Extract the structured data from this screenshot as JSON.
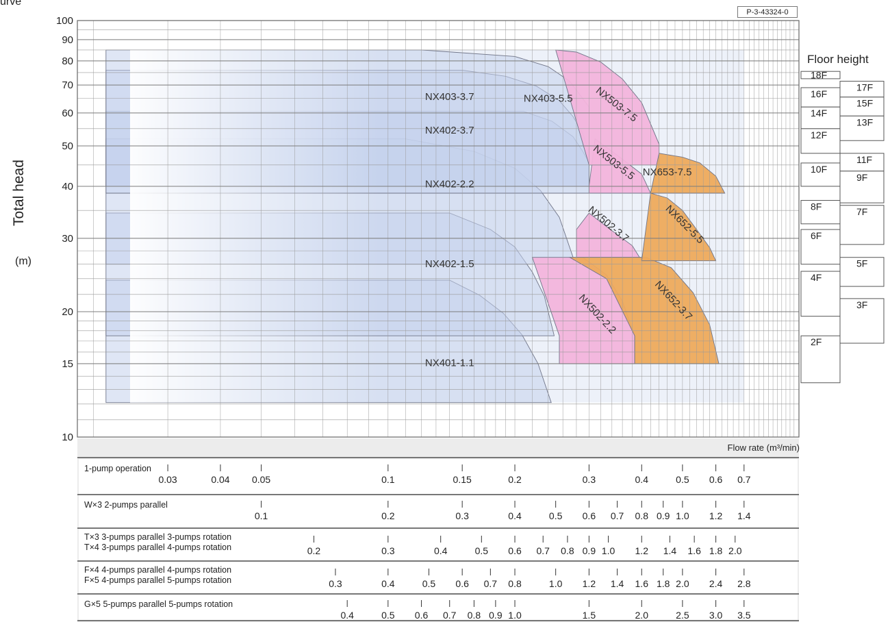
{
  "page": {
    "top_caption": "urve",
    "code": "P-3-43324-0",
    "floor_title": "Floor height",
    "flow_label": "Flow rate (m³/min)"
  },
  "chart_data": {
    "type": "area",
    "title": "",
    "ylabel": "Total head",
    "yunit": "(m)",
    "y_scale": "log",
    "ylim": [
      10,
      100
    ],
    "y_ticks": [
      10,
      15,
      20,
      30,
      40,
      50,
      60,
      70,
      80,
      90,
      100
    ],
    "x_scale": "log",
    "xlim_1pump": [
      0.0183,
      0.945
    ],
    "grid": true,
    "colors": {
      "nx40": "#c5d2ec",
      "nx50": "#f3b4dc",
      "nx65": "#eeaa5c",
      "grid": "#9a9a9a"
    },
    "series": [
      {
        "name": "NX401-1.1",
        "family": "nx40",
        "x": [
          0.0214,
          0.14,
          0.165,
          0.188,
          0.208,
          0.227,
          0.244,
          0.244,
          0.0214
        ],
        "y": [
          23.8,
          23.8,
          21.9,
          19.8,
          17.6,
          15.0,
          12.1,
          12.1,
          12.1
        ]
      },
      {
        "name": "NX402-1.5",
        "family": "nx40",
        "x": [
          0.0214,
          0.14,
          0.175,
          0.2,
          0.22,
          0.235,
          0.248,
          0.0214
        ],
        "y": [
          34.5,
          34.5,
          31.5,
          28.6,
          24.9,
          21.8,
          17.5,
          17.5
        ]
      },
      {
        "name": "NX402-2.2",
        "family": "nx40",
        "x": [
          0.0214,
          0.11,
          0.16,
          0.2,
          0.23,
          0.255,
          0.275,
          0.275,
          0.0214
        ],
        "y": [
          52.0,
          52.0,
          48.5,
          44.2,
          39.1,
          33.7,
          27.0,
          26.0,
          26.0
        ]
      },
      {
        "name": "NX402-3.7",
        "family": "nx40",
        "x": [
          0.0214,
          0.21,
          0.245,
          0.275,
          0.29,
          0.3,
          0.3,
          0.0214
        ],
        "y": [
          60.5,
          60.5,
          57.3,
          52.6,
          48.5,
          45.7,
          38.5,
          38.5
        ]
      },
      {
        "name": "NX403-3.7",
        "family": "nx40",
        "x": [
          0.0214,
          0.15,
          0.19,
          0.225,
          0.255,
          0.275,
          0.29,
          0.3,
          0.3,
          0.0214
        ],
        "y": [
          76.0,
          76.0,
          73.5,
          69.6,
          64.2,
          58.8,
          53.6,
          48.5,
          40.0,
          40.0
        ]
      },
      {
        "name": "NX403-5.5",
        "family": "nx40",
        "x": [
          0.0214,
          0.12,
          0.2,
          0.24,
          0.27,
          0.3,
          0.3,
          0.0214
        ],
        "y": [
          85.0,
          85.0,
          82.0,
          77.5,
          71.5,
          62.0,
          40.0,
          40.0
        ]
      },
      {
        "name": "NX502-2.2",
        "family": "nx50",
        "x": [
          0.22,
          0.29,
          0.33,
          0.36,
          0.385,
          0.385,
          0.255,
          0.255,
          0.22
        ],
        "y": [
          27.0,
          27.0,
          24.5,
          21.2,
          17.5,
          15.0,
          15.0,
          17.5,
          27.0
        ]
      },
      {
        "name": "NX502-3.7",
        "family": "nx50",
        "x": [
          0.28,
          0.3,
          0.34,
          0.38,
          0.4,
          0.4,
          0.28
        ],
        "y": [
          31.5,
          34.5,
          31.3,
          28.8,
          26.5,
          27.0,
          27.0
        ]
      },
      {
        "name": "NX503-5.5",
        "family": "nx50",
        "x": [
          0.3,
          0.31,
          0.35,
          0.4,
          0.42,
          0.3
        ],
        "y": [
          40.0,
          52.0,
          47.5,
          42.8,
          38.5,
          38.5
        ]
      },
      {
        "name": "NX503-7.5",
        "family": "nx50",
        "x": [
          0.25,
          0.28,
          0.32,
          0.36,
          0.4,
          0.44,
          0.44,
          0.3
        ],
        "y": [
          85.0,
          84.0,
          79.5,
          72.4,
          63.5,
          50.5,
          45.0,
          45.0
        ]
      },
      {
        "name": "NX652-3.7",
        "family": "nx65",
        "x": [
          0.27,
          0.41,
          0.47,
          0.53,
          0.58,
          0.61,
          0.385,
          0.385,
          0.33
        ],
        "y": [
          27.0,
          27.0,
          25.5,
          22.2,
          18.6,
          15.0,
          15.0,
          17.5,
          24.0
        ]
      },
      {
        "name": "NX652-5.5",
        "family": "nx65",
        "x": [
          0.4,
          0.42,
          0.46,
          0.5,
          0.54,
          0.58,
          0.6,
          0.6,
          0.4
        ],
        "y": [
          26.5,
          38.5,
          37.5,
          35.0,
          31.5,
          28.5,
          26.5,
          26.5,
          26.5
        ]
      },
      {
        "name": "NX653-7.5",
        "family": "nx65",
        "x": [
          0.42,
          0.44,
          0.5,
          0.55,
          0.6,
          0.63,
          0.42
        ],
        "y": [
          38.5,
          48.0,
          47.0,
          45.5,
          42.3,
          38.5,
          38.5
        ]
      }
    ],
    "floor_heights": [
      {
        "label": "18F",
        "top": 75.5,
        "bottom": 72.5,
        "col": 1
      },
      {
        "label": "17F",
        "top": 71.5,
        "bottom": 65.5,
        "col": 2
      },
      {
        "label": "16F",
        "top": 69.0,
        "bottom": 62.0,
        "col": 1
      },
      {
        "label": "15F",
        "top": 65.5,
        "bottom": 59.0,
        "col": 2
      },
      {
        "label": "14F",
        "top": 62.0,
        "bottom": 55.0,
        "col": 1
      },
      {
        "label": "13F",
        "top": 59.0,
        "bottom": 51.5,
        "col": 2
      },
      {
        "label": "12F",
        "top": 55.0,
        "bottom": 48.0,
        "col": 1
      },
      {
        "label": "11F",
        "top": 48.0,
        "bottom": 43.5,
        "col": 2
      },
      {
        "label": "10F",
        "top": 45.5,
        "bottom": 40.0,
        "col": 1
      },
      {
        "label": "9F",
        "top": 43.5,
        "bottom": 36.5,
        "col": 2
      },
      {
        "label": "8F",
        "top": 37.0,
        "bottom": 32.5,
        "col": 1
      },
      {
        "label": "7F",
        "top": 36.0,
        "bottom": 29.0,
        "col": 2
      },
      {
        "label": "6F",
        "top": 31.5,
        "bottom": 26.0,
        "col": 1
      },
      {
        "label": "5F",
        "top": 27.0,
        "bottom": 23.0,
        "col": 2
      },
      {
        "label": "4F",
        "top": 25.0,
        "bottom": 19.5,
        "col": 1
      },
      {
        "label": "3F",
        "top": 21.5,
        "bottom": 16.8,
        "col": 2
      },
      {
        "label": "2F",
        "top": 17.5,
        "bottom": 13.5,
        "col": 1
      }
    ],
    "flow_tables": [
      {
        "name": "1-pump",
        "rows": [
          "1-pump operation"
        ],
        "multiplier": 1,
        "ticks": [
          {
            "label": "0.03",
            "v": 0.03
          },
          {
            "label": "0.04",
            "v": 0.04
          },
          {
            "label": "0.05",
            "v": 0.05
          },
          {
            "label": "0.1",
            "v": 0.1
          },
          {
            "label": "0.15",
            "v": 0.15
          },
          {
            "label": "0.2",
            "v": 0.2
          },
          {
            "label": "0.3",
            "v": 0.3
          },
          {
            "label": "0.4",
            "v": 0.4
          },
          {
            "label": "0.5",
            "v": 0.5
          },
          {
            "label": "0.6",
            "v": 0.6
          },
          {
            "label": "0.7",
            "v": 0.7
          }
        ]
      },
      {
        "name": "W×3",
        "rows": [
          "W×3   2-pumps parallel"
        ],
        "multiplier": 2,
        "ticks": [
          {
            "label": "0.1",
            "v": 0.1
          },
          {
            "label": "0.2",
            "v": 0.2
          },
          {
            "label": "0.3",
            "v": 0.3
          },
          {
            "label": "0.4",
            "v": 0.4
          },
          {
            "label": "0.5",
            "v": 0.5
          },
          {
            "label": "0.6",
            "v": 0.6
          },
          {
            "label": "0.7",
            "v": 0.7
          },
          {
            "label": "0.8",
            "v": 0.8
          },
          {
            "label": "0.9",
            "v": 0.9
          },
          {
            "label": "1.0",
            "v": 1.0
          },
          {
            "label": "1.2",
            "v": 1.2
          },
          {
            "label": "1.4",
            "v": 1.4
          }
        ]
      },
      {
        "name": "T×3/T×4",
        "rows": [
          "T×3   3-pumps parallel   3-pumps rotation",
          "T×4   3-pumps parallel   4-pumps rotation"
        ],
        "multiplier": 3,
        "ticks": [
          {
            "label": "0.2",
            "v": 0.2
          },
          {
            "label": "0.3",
            "v": 0.3
          },
          {
            "label": "0.4",
            "v": 0.4
          },
          {
            "label": "0.5",
            "v": 0.5
          },
          {
            "label": "0.6",
            "v": 0.6
          },
          {
            "label": "0.7",
            "v": 0.7
          },
          {
            "label": "0.8",
            "v": 0.8
          },
          {
            "label": "0.9",
            "v": 0.9
          },
          {
            "label": "1.0",
            "v": 1.0
          },
          {
            "label": "1.2",
            "v": 1.2
          },
          {
            "label": "1.4",
            "v": 1.4
          },
          {
            "label": "1.6",
            "v": 1.6
          },
          {
            "label": "1.8",
            "v": 1.8
          },
          {
            "label": "2.0",
            "v": 2.0
          }
        ]
      },
      {
        "name": "F×4/F×5",
        "rows": [
          "F×4   4-pumps parallel   4-pumps rotation",
          "F×5   4-pumps parallel   5-pumps rotation"
        ],
        "multiplier": 4,
        "ticks": [
          {
            "label": "0.3",
            "v": 0.3
          },
          {
            "label": "0.4",
            "v": 0.4
          },
          {
            "label": "0.5",
            "v": 0.5
          },
          {
            "label": "0.6",
            "v": 0.6
          },
          {
            "label": "0.7",
            "v": 0.7
          },
          {
            "label": "0.8",
            "v": 0.8
          },
          {
            "label": "1.0",
            "v": 1.0
          },
          {
            "label": "1.2",
            "v": 1.2
          },
          {
            "label": "1.4",
            "v": 1.4
          },
          {
            "label": "1.6",
            "v": 1.6
          },
          {
            "label": "1.8",
            "v": 1.8
          },
          {
            "label": "2.0",
            "v": 2.0
          },
          {
            "label": "2.4",
            "v": 2.4
          },
          {
            "label": "2.8",
            "v": 2.8
          }
        ]
      },
      {
        "name": "G×5",
        "rows": [
          "G×5   5-pumps parallel   5-pumps rotation"
        ],
        "multiplier": 5,
        "ticks": [
          {
            "label": "0.4",
            "v": 0.4
          },
          {
            "label": "0.5",
            "v": 0.5
          },
          {
            "label": "0.6",
            "v": 0.6
          },
          {
            "label": "0.7",
            "v": 0.7
          },
          {
            "label": "0.8",
            "v": 0.8
          },
          {
            "label": "0.9",
            "v": 0.9
          },
          {
            "label": "1.0",
            "v": 1.0
          },
          {
            "label": "1.5",
            "v": 1.5
          },
          {
            "label": "2.0",
            "v": 2.0
          },
          {
            "label": "2.5",
            "v": 2.5
          },
          {
            "label": "3.0",
            "v": 3.0
          },
          {
            "label": "3.5",
            "v": 3.5
          }
        ]
      }
    ]
  }
}
